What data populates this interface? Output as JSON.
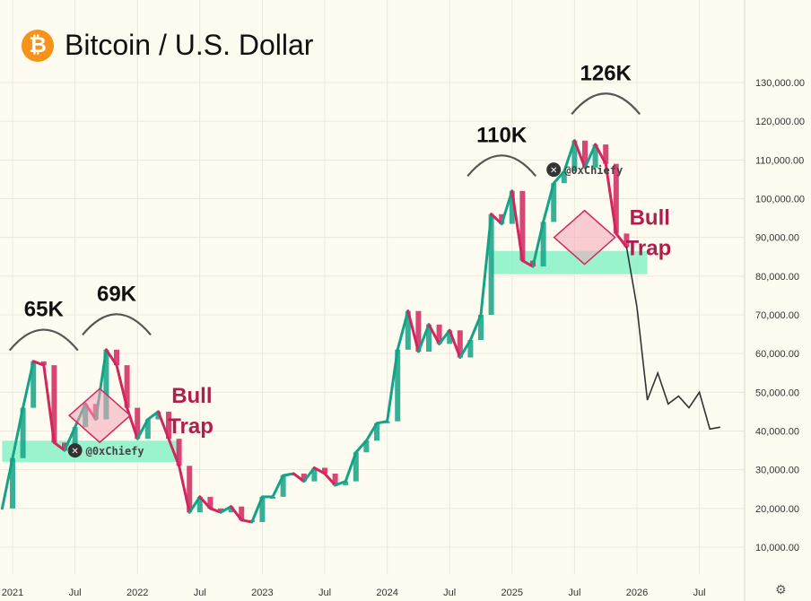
{
  "title": "Bitcoin / U.S. Dollar",
  "logo_glyph": "₿",
  "settings_icon": "⚙",
  "colors": {
    "background": "#fefbf0",
    "grid": "#ece8dc",
    "up": "#13a386",
    "down": "#d1265e",
    "support_zone": "#7ff2c6",
    "trap_fill": "#f4a6b8",
    "trap_stroke": "#d1265e",
    "trap_text": "#b01e4e",
    "projection": "#333333",
    "arc": "#555555"
  },
  "chart_data": {
    "type": "line",
    "title": "Bitcoin / U.S. Dollar",
    "x_tick_labels": [
      "2021",
      "Jul",
      "2022",
      "Jul",
      "2023",
      "Jul",
      "2024",
      "Jul",
      "2025",
      "Jul",
      "2026",
      "Jul"
    ],
    "x_ticks": [
      "2021-01",
      "2021-07",
      "2022-01",
      "2022-07",
      "2023-01",
      "2023-07",
      "2024-01",
      "2024-07",
      "2025-01",
      "2025-07",
      "2026-01",
      "2026-07"
    ],
    "x_range": [
      "2020-12",
      "2026-10"
    ],
    "y_ticks": [
      10000,
      20000,
      30000,
      40000,
      50000,
      60000,
      70000,
      80000,
      90000,
      100000,
      110000,
      120000,
      130000
    ],
    "y_tick_labels": [
      "10,000.00",
      "20,000.00",
      "30,000.00",
      "40,000.00",
      "50,000.00",
      "60,000.00",
      "70,000.00",
      "80,000.00",
      "90,000.00",
      "100,000.00",
      "110,000.00",
      "120,000.00",
      "130,000.00"
    ],
    "ylim": [
      6000,
      140000
    ],
    "grid": true,
    "price_series": {
      "dates": [
        "2020-12",
        "2021-01",
        "2021-02",
        "2021-03",
        "2021-04",
        "2021-05",
        "2021-06",
        "2021-07",
        "2021-08",
        "2021-09",
        "2021-10",
        "2021-11",
        "2021-12",
        "2022-01",
        "2022-02",
        "2022-03",
        "2022-04",
        "2022-05",
        "2022-06",
        "2022-07",
        "2022-08",
        "2022-09",
        "2022-10",
        "2022-11",
        "2022-12",
        "2023-01",
        "2023-02",
        "2023-03",
        "2023-04",
        "2023-05",
        "2023-06",
        "2023-07",
        "2023-08",
        "2023-09",
        "2023-10",
        "2023-11",
        "2023-12",
        "2024-01",
        "2024-02",
        "2024-03",
        "2024-04",
        "2024-05",
        "2024-06",
        "2024-07",
        "2024-08",
        "2024-09",
        "2024-10",
        "2024-11",
        "2024-12",
        "2025-01",
        "2025-02",
        "2025-03",
        "2025-04",
        "2025-05",
        "2025-06",
        "2025-07",
        "2025-08",
        "2025-09",
        "2025-10",
        "2025-11",
        "2025-12"
      ],
      "values": [
        20000,
        33000,
        46000,
        58000,
        57000,
        37000,
        35000,
        41000,
        47000,
        43000,
        61000,
        57000,
        46000,
        38000,
        43000,
        45000,
        38000,
        31000,
        19000,
        23000,
        20000,
        19000,
        20500,
        17000,
        16500,
        23000,
        23000,
        28500,
        29000,
        27000,
        30500,
        29000,
        26000,
        27000,
        34500,
        37500,
        42000,
        42500,
        61000,
        71000,
        60500,
        67500,
        62500,
        66000,
        59000,
        63500,
        70000,
        96000,
        93500,
        102000,
        84000,
        82500,
        94000,
        104000,
        107000,
        115000,
        108000,
        114000,
        109000,
        91000,
        87500
      ]
    },
    "projection_series": {
      "dates": [
        "2025-12",
        "2026-01",
        "2026-02",
        "2026-03",
        "2026-04",
        "2026-05",
        "2026-06",
        "2026-07",
        "2026-08",
        "2026-09"
      ],
      "values": [
        87500,
        72000,
        48000,
        55000,
        47000,
        49000,
        46000,
        50000,
        40500,
        41000
      ]
    },
    "annotations": [
      {
        "label": "65K",
        "date": "2021-04",
        "value": 65000
      },
      {
        "label": "69K",
        "date": "2021-11",
        "value": 69000
      },
      {
        "label": "110K",
        "date": "2024-12",
        "value": 110000
      },
      {
        "label": "126K",
        "date": "2025-10",
        "value": 126000
      },
      {
        "label": "Bull",
        "label2": "Trap",
        "date": "2022-06",
        "value": 44000
      },
      {
        "label": "Bull",
        "label2": "Trap",
        "date": "2026-02",
        "value": 90000
      }
    ],
    "watermarks": [
      "@0xChiefy",
      "@0xChiefy"
    ],
    "support_zones": [
      {
        "date_start": "2020-12",
        "date_end": "2022-05",
        "low": 32000,
        "high": 37500
      },
      {
        "date_start": "2024-11",
        "date_end": "2026-02",
        "low": 80500,
        "high": 86500
      }
    ]
  }
}
